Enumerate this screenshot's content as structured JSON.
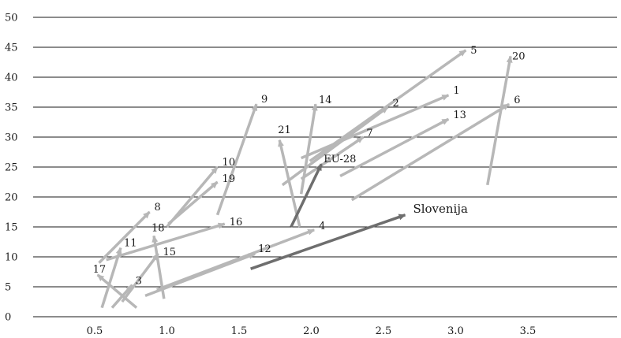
{
  "chart_data": {
    "type": "scatter",
    "title": "",
    "xlabel": "",
    "ylabel": "",
    "xlim": [
      0.2,
      4.0
    ],
    "ylim": [
      0,
      50
    ],
    "x_ticks": [
      "0.5",
      "1.0",
      "1.5",
      "2.0",
      "2.5",
      "3.0",
      "3.5"
    ],
    "y_ticks": [
      "0",
      "5",
      "10",
      "15",
      "20",
      "25",
      "30",
      "35",
      "40",
      "45",
      "50"
    ],
    "grid": "horizontal",
    "colors": {
      "countries": "#b7b7b7",
      "highlight": "#6e6e6e",
      "gridline": "#1a1a1a"
    },
    "arrows": [
      {
        "label": "1",
        "from": [
          1.93,
          26.5
        ],
        "to": [
          2.95,
          37.0
        ],
        "highlight": false
      },
      {
        "label": "2",
        "from": [
          1.8,
          22.0
        ],
        "to": [
          2.53,
          35.0
        ],
        "highlight": false
      },
      {
        "label": "3",
        "from": [
          0.62,
          1.5
        ],
        "to": [
          0.76,
          5.3
        ],
        "highlight": false
      },
      {
        "label": "4",
        "from": [
          0.93,
          4.5
        ],
        "to": [
          2.02,
          14.5
        ],
        "highlight": false
      },
      {
        "label": "5",
        "from": [
          1.99,
          26.0
        ],
        "to": [
          3.07,
          44.5
        ],
        "highlight": false
      },
      {
        "label": "6",
        "from": [
          2.28,
          19.5
        ],
        "to": [
          3.37,
          35.5
        ],
        "highlight": false
      },
      {
        "label": "7",
        "from": [
          1.93,
          23.0
        ],
        "to": [
          2.36,
          30.0
        ],
        "highlight": false
      },
      {
        "label": "8",
        "from": [
          0.53,
          9.0
        ],
        "to": [
          0.88,
          17.5
        ],
        "highlight": false
      },
      {
        "label": "9",
        "from": [
          1.35,
          17.0
        ],
        "to": [
          1.62,
          35.5
        ],
        "highlight": false
      },
      {
        "label": "10",
        "from": [
          1.0,
          15.0
        ],
        "to": [
          1.35,
          25.0
        ],
        "highlight": false
      },
      {
        "label": "11",
        "from": [
          0.55,
          1.5
        ],
        "to": [
          0.68,
          11.5
        ],
        "highlight": false
      },
      {
        "label": "12",
        "from": [
          0.85,
          3.5
        ],
        "to": [
          1.61,
          10.5
        ],
        "highlight": false
      },
      {
        "label": "13",
        "from": [
          2.2,
          23.5
        ],
        "to": [
          2.95,
          33.0
        ],
        "highlight": false
      },
      {
        "label": "14",
        "from": [
          1.93,
          20.5
        ],
        "to": [
          2.03,
          35.5
        ],
        "highlight": false
      },
      {
        "label": "15",
        "from": [
          0.69,
          2.5
        ],
        "to": [
          0.94,
          10.5
        ],
        "highlight": false
      },
      {
        "label": "16",
        "from": [
          0.58,
          9.5
        ],
        "to": [
          1.4,
          15.5
        ],
        "highlight": false
      },
      {
        "label": "17",
        "from": [
          0.79,
          1.5
        ],
        "to": [
          0.52,
          7.0
        ],
        "highlight": false
      },
      {
        "label": "18",
        "from": [
          0.98,
          3.0
        ],
        "to": [
          0.91,
          13.5
        ],
        "highlight": false
      },
      {
        "label": "19",
        "from": [
          1.01,
          15.5
        ],
        "to": [
          1.35,
          22.5
        ],
        "highlight": false
      },
      {
        "label": "20",
        "from": [
          3.22,
          22.0
        ],
        "to": [
          3.38,
          43.5
        ],
        "highlight": false
      },
      {
        "label": "21",
        "from": [
          1.92,
          15.0
        ],
        "to": [
          1.78,
          29.5
        ],
        "highlight": false
      },
      {
        "label": "EU-28",
        "from": [
          1.86,
          15.0
        ],
        "to": [
          2.07,
          25.5
        ],
        "highlight": true
      },
      {
        "label": "Slovenija",
        "from": [
          1.58,
          8.0
        ],
        "to": [
          2.65,
          17.0
        ],
        "highlight": true
      }
    ]
  }
}
